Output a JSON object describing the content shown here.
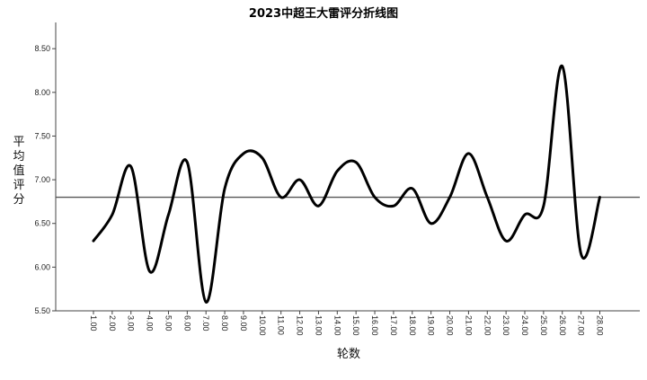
{
  "chart_data": {
    "type": "line",
    "title": "2023中超王大雷评分折线图",
    "xlabel": "轮数",
    "ylabel": "平均值评分",
    "categories": [
      "1.00",
      "2.00",
      "3.00",
      "4.00",
      "5.00",
      "6.00",
      "7.00",
      "8.00",
      "9.00",
      "10.00",
      "11.00",
      "12.00",
      "13.00",
      "14.00",
      "15.00",
      "16.00",
      "17.00",
      "18.00",
      "19.00",
      "20.00",
      "21.00",
      "22.00",
      "23.00",
      "24.00",
      "25.00",
      "26.00",
      "27.00",
      "28.00"
    ],
    "series": [
      {
        "values": [
          6.3,
          6.6,
          7.15,
          5.95,
          6.6,
          7.2,
          5.6,
          6.9,
          7.3,
          7.25,
          6.8,
          7.0,
          6.7,
          7.1,
          7.2,
          6.8,
          6.7,
          6.9,
          6.5,
          6.8,
          7.3,
          6.8,
          6.3,
          6.6,
          6.7,
          8.3,
          6.15,
          6.8
        ]
      }
    ],
    "reference_line": 6.8,
    "y_ticks": [
      "5.50",
      "6.00",
      "6.50",
      "7.00",
      "7.50",
      "8.00",
      "8.50"
    ],
    "ylim": [
      5.5,
      8.8
    ],
    "grid": false,
    "colors": {
      "line": "#000000",
      "reference": "#555555",
      "axis": "#444444"
    }
  }
}
